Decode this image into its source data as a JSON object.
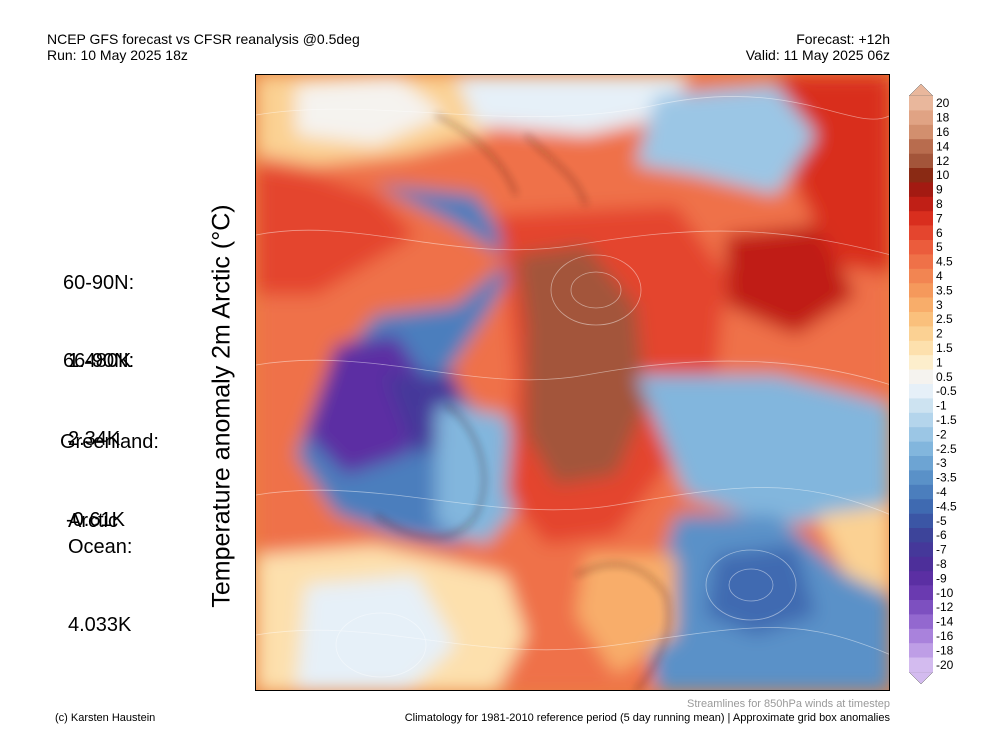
{
  "header": {
    "title": "NCEP GFS forecast vs CFSR reanalysis @0.5deg",
    "run": "Run: 10 May 2025 18z",
    "forecast": "Forecast: +12h",
    "valid": "Valid: 11 May 2025 06z"
  },
  "y_axis_label": "Temperature anomaly 2m Arctic (°C)",
  "stats": [
    {
      "name": "60-90N:",
      "value": "1.480K"
    },
    {
      "name": "66-90N:",
      "value": "2.34K"
    },
    {
      "name": "Greenland:",
      "value": "-0.61K"
    },
    {
      "name": "Arctic\nOcean:",
      "value": "4.033K"
    }
  ],
  "colorbar": {
    "labels": [
      "20",
      "18",
      "16",
      "14",
      "12",
      "10",
      "9",
      "8",
      "7",
      "6",
      "5",
      "4.5",
      "4",
      "3.5",
      "3",
      "2.5",
      "2",
      "1.5",
      "1",
      "0.5",
      "-0.5",
      "-1",
      "-1.5",
      "-2",
      "-2.5",
      "-3",
      "-3.5",
      "-4",
      "-4.5",
      "-5",
      "-6",
      "-7",
      "-8",
      "-9",
      "-10",
      "-12",
      "-14",
      "-16",
      "-18",
      "-20"
    ],
    "colors": [
      "#e9b79c",
      "#e0a384",
      "#d28f6e",
      "#b86c4e",
      "#a3553a",
      "#8a2a14",
      "#a31a12",
      "#c01f16",
      "#d92e1e",
      "#e4452e",
      "#eb5c3c",
      "#ef7148",
      "#f28552",
      "#f5995c",
      "#f8ad6a",
      "#fac07c",
      "#fbd193",
      "#fde0ad",
      "#fdeecc",
      "#f5f3ef",
      "#e6f0f8",
      "#cde3f1",
      "#b4d5ec",
      "#9bc6e5",
      "#82b6dd",
      "#6da4d3",
      "#5a91c8",
      "#4b7ebd",
      "#3f6ab1",
      "#3b56a5",
      "#3d449a",
      "#45389a",
      "#4d2f9a",
      "#5b2fa3",
      "#6a3ab0",
      "#7d50c0",
      "#9368cf",
      "#a982dc",
      "#be9ee6",
      "#d3bbef"
    ]
  },
  "footer": {
    "credit": "(c) Karsten Haustein",
    "streamlines": "Streamlines for 850hPa winds at timestep",
    "climatology": "Climatology for 1981-2010 reference period (5 day running mean) | Approximate grid box anomalies"
  }
}
